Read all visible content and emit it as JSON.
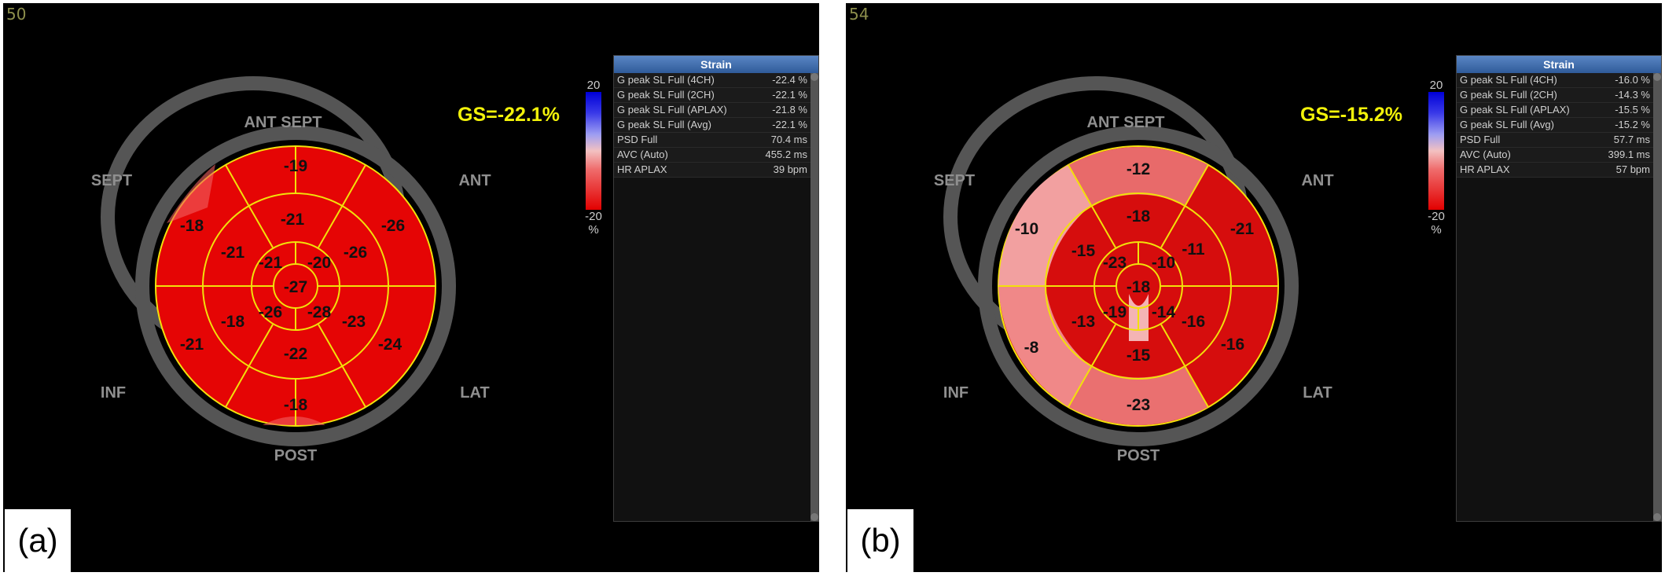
{
  "panels": [
    {
      "frame": "50",
      "label": "(a)",
      "gs": "GS=-22.1%",
      "scale": {
        "top": "20",
        "bottom": "-20",
        "unit": "%"
      },
      "orientation": {
        "ant_sept": "ANT SEPT",
        "sept": "SEPT",
        "ant": "ANT",
        "inf": "INF",
        "lat": "LAT",
        "post": "POST"
      },
      "segments": {
        "basal": [
          "-19",
          "-26",
          "-24",
          "-18",
          "-21",
          "-18"
        ],
        "mid": [
          "-21",
          "-26",
          "-23",
          "-22",
          "-18",
          "-21"
        ],
        "apical": [
          "-20",
          "-28",
          "-26",
          "-21"
        ],
        "apex": "-27"
      },
      "table": {
        "title": "Strain",
        "rows": [
          {
            "label": "G peak SL Full (4CH)",
            "value": "-22.4 %"
          },
          {
            "label": "G peak SL Full (2CH)",
            "value": "-22.1 %"
          },
          {
            "label": "G peak SL Full (APLAX)",
            "value": "-21.8 %"
          },
          {
            "label": "G peak SL Full (Avg)",
            "value": "-22.1 %"
          },
          {
            "label": "PSD Full",
            "value": "70.4 ms"
          },
          {
            "label": "AVC (Auto)",
            "value": "455.2 ms"
          },
          {
            "label": "HR APLAX",
            "value": "39 bpm"
          }
        ]
      },
      "colors": {
        "base": "#e50505",
        "light": "#f27a7a"
      }
    },
    {
      "frame": "54",
      "label": "(b)",
      "gs": "GS=-15.2%",
      "scale": {
        "top": "20",
        "bottom": "-20",
        "unit": "%"
      },
      "orientation": {
        "ant_sept": "ANT SEPT",
        "sept": "SEPT",
        "ant": "ANT",
        "inf": "INF",
        "lat": "LAT",
        "post": "POST"
      },
      "segments": {
        "basal": [
          "-12",
          "-21",
          "-16",
          "-23",
          "-8",
          "-10"
        ],
        "mid": [
          "-18",
          "-11",
          "-16",
          "-15",
          "-13",
          "-15"
        ],
        "apical": [
          "-10",
          "-14",
          "-19",
          "-23"
        ],
        "apex": "-18"
      },
      "table": {
        "title": "Strain",
        "rows": [
          {
            "label": "G peak SL Full (4CH)",
            "value": "-16.0 %"
          },
          {
            "label": "G peak SL Full (2CH)",
            "value": "-14.3 %"
          },
          {
            "label": "G peak SL Full (APLAX)",
            "value": "-15.5 %"
          },
          {
            "label": "G peak SL Full (Avg)",
            "value": "-15.2 %"
          },
          {
            "label": "PSD Full",
            "value": "57.7 ms"
          },
          {
            "label": "AVC (Auto)",
            "value": "399.1 ms"
          },
          {
            "label": "HR APLAX",
            "value": "57 bpm"
          }
        ]
      },
      "colors": {
        "base": "#d60d0d",
        "light": "#f09a9a"
      }
    }
  ]
}
